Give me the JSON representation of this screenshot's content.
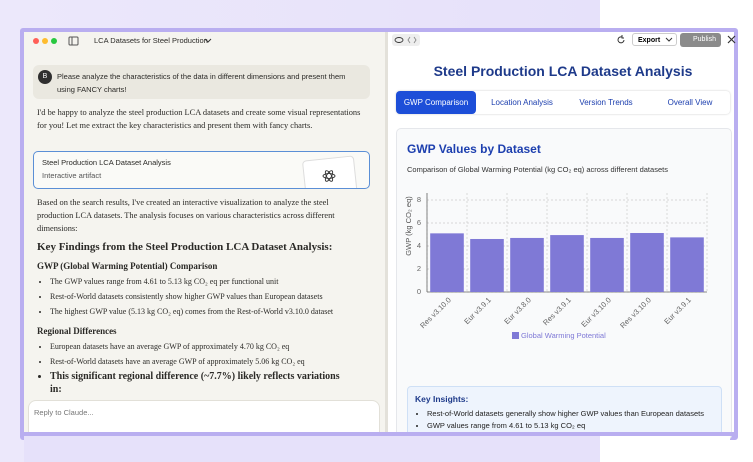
{
  "left_panel": {
    "title": "LCA Datasets for Steel Production",
    "user_avatar": "B",
    "user_message": "Please analyze the characteristics of the data in different dimensions and present them using FANCY charts!",
    "reply_intro": "I'd be happy to analyze the steel production LCA datasets and create some visual representations for you! Let me extract the key characteristics and present them with fancy charts.",
    "artifact_card": {
      "title": "Steel Production LCA Dataset Analysis",
      "subtitle": "Interactive artifact"
    },
    "reply_body": "Based on the search results, I've created an interactive visualization to analyze the steel production LCA datasets. The analysis focuses on various characteristics across different dimensions:",
    "heading": "Key Findings from the Steel Production LCA Dataset Analysis:",
    "sections": [
      {
        "heading": "GWP (Global Warming Potential) Comparison",
        "bullets": [
          "The GWP values range from 4.61 to 5.13 kg CO₂ eq per functional unit",
          "Rest-of-World datasets consistently show higher GWP values than European datasets",
          "The highest GWP value (5.13 kg CO₂ eq) comes from the Rest-of-World v3.10.0 dataset"
        ]
      },
      {
        "heading": "Regional Differences",
        "bullets": [
          "European datasets have an average GWP of approximately 4.70 kg CO₂ eq",
          "Rest-of-World datasets have an average GWP of approximately 5.06 kg CO₂ eq"
        ]
      }
    ],
    "emphasis": "This significant regional difference (~7.7%) likely reflects variations in:",
    "input_placeholder": "Reply to Claude..."
  },
  "toolbar": {
    "export": "Export",
    "publish": "Publish"
  },
  "artifact": {
    "title": "Steel Production LCA Dataset Analysis",
    "tabs": [
      "GWP Comparison",
      "Location Analysis",
      "Version Trends",
      "Overall View"
    ],
    "card_title": "GWP Values by Dataset",
    "card_subtitle": "Comparison of Global Warming Potential (kg CO₂ eq) across different datasets",
    "insights": {
      "title": "Key Insights:",
      "items": [
        "Rest-of-World datasets generally show higher GWP values than European datasets",
        "GWP values range from 4.61 to 5.13 kg CO₂ eq"
      ]
    }
  },
  "chart_data": {
    "type": "bar",
    "y_label": "GWP (kg CO₂ eq)",
    "categories": [
      "Res v3.10.0",
      "Eur v3.9.1",
      "Eur v3.8.0",
      "Res v3.9.1",
      "Eur v3.10.0",
      "Res v3.10.0",
      "Eur v3.9.1"
    ],
    "series": [
      {
        "name": "Global Warming Potential",
        "color": "#7f79d6",
        "values": [
          5.1,
          4.61,
          4.7,
          4.95,
          4.7,
          5.13,
          4.75
        ]
      }
    ],
    "ylim": [
      0,
      8
    ],
    "yticks": [
      0,
      2,
      4,
      6,
      8
    ],
    "grid": true
  }
}
